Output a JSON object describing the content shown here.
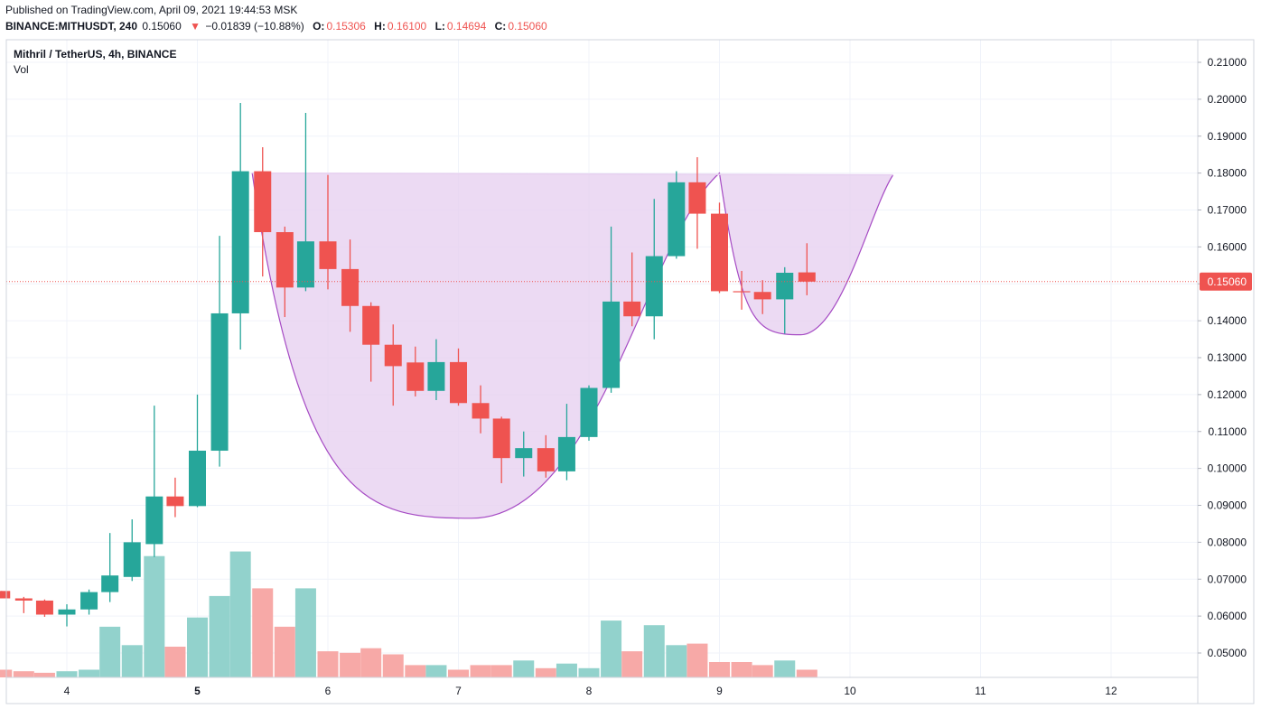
{
  "header": {
    "published": "Published on TradingView.com, April 09, 2021 19:44:53 MSK",
    "symbol": "BINANCE:MITHUSDT, 240",
    "last": "0.15060",
    "change_arrow": "▼",
    "change": "−0.01839 (−10.88%)",
    "o_label": "O:",
    "o": "0.15306",
    "h_label": "H:",
    "h": "0.16100",
    "l_label": "L:",
    "l": "0.14694",
    "c_label": "C:",
    "c": "0.15060"
  },
  "legend": {
    "title": "Mithril / TetherUS, 4h, BINANCE",
    "vol": "Vol"
  },
  "colors": {
    "up": "#26a69a",
    "down": "#ef5350",
    "up_vol": "#92d2cc",
    "down_vol": "#f7a9a7",
    "pattern_fill": "#e7d1f0",
    "pattern_line": "#a64bc4",
    "grid": "#f0f3fa"
  },
  "chart_data": {
    "type": "candlestick",
    "price_axis": {
      "ylim": [
        0.045,
        0.2145
      ],
      "ticks": [
        "0.21000",
        "0.20000",
        "0.19000",
        "0.18000",
        "0.17000",
        "0.16000",
        "0.15000",
        "0.14000",
        "0.13000",
        "0.12000",
        "0.11000",
        "0.10000",
        "0.09000",
        "0.08000",
        "0.07000",
        "0.06000",
        "0.05000"
      ],
      "last_price_label": "0.15060"
    },
    "time_axis": {
      "ticks": [
        "4",
        "5",
        "6",
        "7",
        "8",
        "9",
        "10",
        "11",
        "12"
      ]
    },
    "candles": [
      {
        "t": 3.5,
        "o": 0.0668,
        "h": 0.0668,
        "l": 0.0648,
        "c": 0.0648
      },
      {
        "t": 3.67,
        "o": 0.0648,
        "h": 0.0652,
        "l": 0.0608,
        "c": 0.0642
      },
      {
        "t": 3.83,
        "o": 0.0642,
        "h": 0.0645,
        "l": 0.0598,
        "c": 0.0604
      },
      {
        "t": 4.0,
        "o": 0.0604,
        "h": 0.0632,
        "l": 0.0572,
        "c": 0.0618
      },
      {
        "t": 4.17,
        "o": 0.0618,
        "h": 0.0672,
        "l": 0.0604,
        "c": 0.0665
      },
      {
        "t": 4.33,
        "o": 0.0665,
        "h": 0.0825,
        "l": 0.0638,
        "c": 0.071
      },
      {
        "t": 4.5,
        "o": 0.0706,
        "h": 0.0862,
        "l": 0.0695,
        "c": 0.08
      },
      {
        "t": 4.67,
        "o": 0.0795,
        "h": 0.117,
        "l": 0.076,
        "c": 0.0924
      },
      {
        "t": 4.83,
        "o": 0.0924,
        "h": 0.0975,
        "l": 0.0868,
        "c": 0.0898
      },
      {
        "t": 5.0,
        "o": 0.0898,
        "h": 0.12,
        "l": 0.0895,
        "c": 0.1048
      },
      {
        "t": 5.17,
        "o": 0.1048,
        "h": 0.163,
        "l": 0.1005,
        "c": 0.142
      },
      {
        "t": 5.33,
        "o": 0.142,
        "h": 0.199,
        "l": 0.1322,
        "c": 0.1805
      },
      {
        "t": 5.5,
        "o": 0.1805,
        "h": 0.187,
        "l": 0.152,
        "c": 0.164
      },
      {
        "t": 5.67,
        "o": 0.164,
        "h": 0.1655,
        "l": 0.141,
        "c": 0.149
      },
      {
        "t": 5.83,
        "o": 0.149,
        "h": 0.1963,
        "l": 0.148,
        "c": 0.1615
      },
      {
        "t": 6.0,
        "o": 0.1615,
        "h": 0.1795,
        "l": 0.1485,
        "c": 0.154
      },
      {
        "t": 6.17,
        "o": 0.154,
        "h": 0.162,
        "l": 0.137,
        "c": 0.144
      },
      {
        "t": 6.33,
        "o": 0.144,
        "h": 0.145,
        "l": 0.1235,
        "c": 0.1335
      },
      {
        "t": 6.5,
        "o": 0.1335,
        "h": 0.139,
        "l": 0.117,
        "c": 0.1277
      },
      {
        "t": 6.67,
        "o": 0.1287,
        "h": 0.133,
        "l": 0.1195,
        "c": 0.121
      },
      {
        "t": 6.83,
        "o": 0.121,
        "h": 0.135,
        "l": 0.1185,
        "c": 0.1288
      },
      {
        "t": 7.0,
        "o": 0.1288,
        "h": 0.1325,
        "l": 0.117,
        "c": 0.1177
      },
      {
        "t": 7.17,
        "o": 0.1177,
        "h": 0.1225,
        "l": 0.1095,
        "c": 0.1135
      },
      {
        "t": 7.33,
        "o": 0.1135,
        "h": 0.114,
        "l": 0.096,
        "c": 0.1028
      },
      {
        "t": 7.5,
        "o": 0.1028,
        "h": 0.11,
        "l": 0.0978,
        "c": 0.1055
      },
      {
        "t": 7.67,
        "o": 0.1055,
        "h": 0.109,
        "l": 0.0975,
        "c": 0.0992
      },
      {
        "t": 7.83,
        "o": 0.0992,
        "h": 0.1175,
        "l": 0.0968,
        "c": 0.1085
      },
      {
        "t": 8.0,
        "o": 0.1085,
        "h": 0.1225,
        "l": 0.1075,
        "c": 0.1218
      },
      {
        "t": 8.17,
        "o": 0.1218,
        "h": 0.1655,
        "l": 0.1205,
        "c": 0.1452
      },
      {
        "t": 8.33,
        "o": 0.1452,
        "h": 0.1585,
        "l": 0.1385,
        "c": 0.1412
      },
      {
        "t": 8.5,
        "o": 0.1412,
        "h": 0.173,
        "l": 0.135,
        "c": 0.1575
      },
      {
        "t": 8.67,
        "o": 0.1575,
        "h": 0.1805,
        "l": 0.1568,
        "c": 0.1775
      },
      {
        "t": 8.83,
        "o": 0.1775,
        "h": 0.1843,
        "l": 0.1595,
        "c": 0.169
      },
      {
        "t": 9.0,
        "o": 0.169,
        "h": 0.172,
        "l": 0.1475,
        "c": 0.148
      },
      {
        "t": 9.17,
        "o": 0.148,
        "h": 0.1535,
        "l": 0.143,
        "c": 0.1478
      },
      {
        "t": 9.33,
        "o": 0.1478,
        "h": 0.151,
        "l": 0.1418,
        "c": 0.1458
      },
      {
        "t": 9.5,
        "o": 0.1458,
        "h": 0.1545,
        "l": 0.1365,
        "c": 0.153
      },
      {
        "t": 9.67,
        "o": 0.1531,
        "h": 0.161,
        "l": 0.1469,
        "c": 0.1506
      }
    ],
    "volume_relative": [
      0.05,
      0.04,
      0.03,
      0.04,
      0.05,
      0.33,
      0.21,
      0.79,
      0.2,
      0.39,
      0.53,
      0.82,
      0.58,
      0.33,
      0.58,
      0.17,
      0.16,
      0.19,
      0.15,
      0.08,
      0.08,
      0.05,
      0.08,
      0.08,
      0.11,
      0.06,
      0.09,
      0.06,
      0.37,
      0.17,
      0.34,
      0.21,
      0.22,
      0.1,
      0.1,
      0.08,
      0.11,
      0.05
    ],
    "pattern": {
      "name": "cup and handle",
      "rim": 0.18,
      "cup": {
        "t_start": 5.42,
        "t_bottom": 7.1,
        "t_end": 9.0,
        "bottom": 0.0865
      },
      "handle": {
        "t_start": 9.0,
        "t_bottom": 9.62,
        "t_end": 10.33,
        "bottom": 0.1362
      }
    }
  }
}
